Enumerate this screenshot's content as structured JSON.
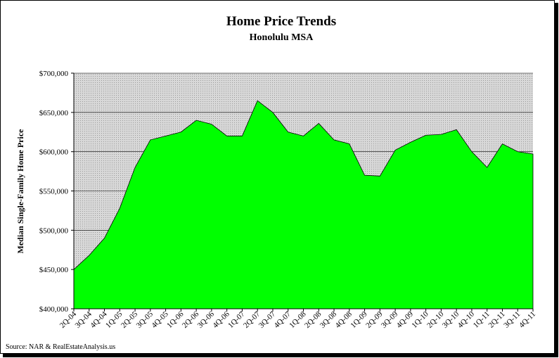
{
  "chart_data": {
    "type": "area",
    "title": "Home Price Trends",
    "subtitle": "Honolulu MSA",
    "y_label": "Median Single-Family Home Price",
    "source": "Source: NAR & RealEstateAnalysis.us",
    "categories": [
      "2Q-04",
      "3Q-04",
      "4Q-04",
      "1Q-05",
      "2Q-05",
      "3Q-05",
      "4Q-05",
      "1Q-06",
      "2Q-06",
      "3Q-06",
      "4Q-06",
      "1Q-07",
      "2Q-07",
      "3Q-07",
      "4Q-07",
      "1Q-08",
      "2Q-08",
      "3Q-08",
      "4Q-08",
      "1Q-09",
      "2Q-09",
      "3Q-09",
      "4Q-09",
      "1Q-10",
      "2Q-10",
      "3Q-10",
      "4Q-10",
      "1Q-11",
      "2Q-11",
      "3Q-11",
      "4Q-11"
    ],
    "values": [
      450000,
      468000,
      490000,
      528000,
      580000,
      615000,
      620000,
      625000,
      640000,
      635000,
      620000,
      620000,
      665000,
      650000,
      625000,
      620000,
      636000,
      615000,
      610000,
      570000,
      569000,
      602000,
      612000,
      621000,
      622000,
      628000,
      600000,
      580000,
      610000,
      600000,
      597000
    ],
    "color": "#00ff00",
    "ylim": [
      400000,
      700000
    ],
    "yticks": [
      {
        "value": 400000,
        "label": "$400,000"
      },
      {
        "value": 450000,
        "label": "$450,000"
      },
      {
        "value": 500000,
        "label": "$500,000"
      },
      {
        "value": 550000,
        "label": "$550,000"
      },
      {
        "value": 600000,
        "label": "$600,000"
      },
      {
        "value": 650000,
        "label": "$650,000"
      },
      {
        "value": 700000,
        "label": "$700,000"
      }
    ],
    "grid": true
  }
}
